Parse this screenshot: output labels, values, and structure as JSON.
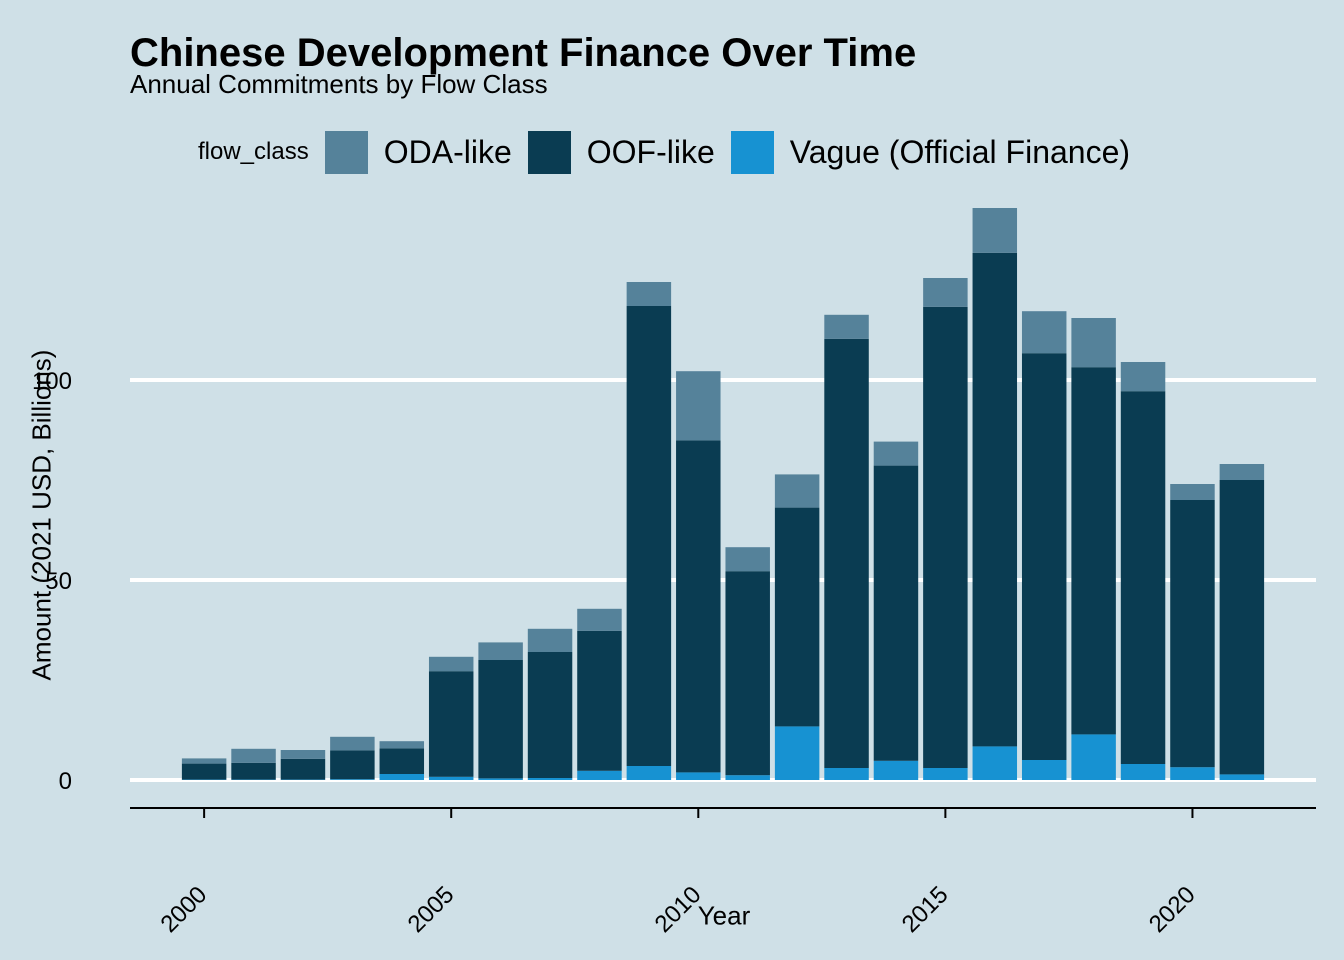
{
  "chart_data": {
    "type": "bar",
    "stacked": true,
    "title": "Chinese Development Finance Over Time",
    "subtitle": "Annual Commitments by Flow Class",
    "xlabel": "Year",
    "ylabel": "Amount (2021 USD, Billions)",
    "legend_title": "flow_class",
    "legend_position": "top",
    "grid": "horizontal major lines only",
    "ylim": [
      -7,
      145
    ],
    "xlim": [
      1998.5,
      2022.5
    ],
    "x_ticks": [
      2000,
      2005,
      2010,
      2015,
      2020
    ],
    "y_ticks": [
      0,
      50,
      100
    ],
    "categories": [
      2000,
      2001,
      2002,
      2003,
      2004,
      2005,
      2006,
      2007,
      2008,
      2009,
      2010,
      2011,
      2012,
      2013,
      2014,
      2015,
      2016,
      2017,
      2018,
      2019,
      2020,
      2021
    ],
    "series": [
      {
        "name": "Vague (Official Finance)",
        "color": "#1792d2",
        "values": [
          0.1,
          0.1,
          0.1,
          0.2,
          1.5,
          0.8,
          0.4,
          0.5,
          2.3,
          3.5,
          1.9,
          1.2,
          13.4,
          3.0,
          4.8,
          3.0,
          8.4,
          5.0,
          11.4,
          4.0,
          3.2,
          1.4
        ]
      },
      {
        "name": "OOF-like",
        "color": "#0a3c52",
        "values": [
          4.0,
          4.2,
          5.2,
          7.2,
          6.4,
          26.4,
          29.6,
          31.5,
          35.0,
          115.0,
          83.0,
          51.0,
          54.7,
          107.3,
          73.8,
          115.3,
          123.4,
          101.7,
          91.8,
          93.2,
          66.8,
          73.6
        ]
      },
      {
        "name": "ODA-like",
        "color": "#55829a",
        "values": [
          1.3,
          3.5,
          2.2,
          3.4,
          1.8,
          3.6,
          4.4,
          5.8,
          5.5,
          6.0,
          17.3,
          6.0,
          8.3,
          6.0,
          6.0,
          7.2,
          11.2,
          10.5,
          12.3,
          7.3,
          4.0,
          4.0
        ]
      }
    ]
  }
}
